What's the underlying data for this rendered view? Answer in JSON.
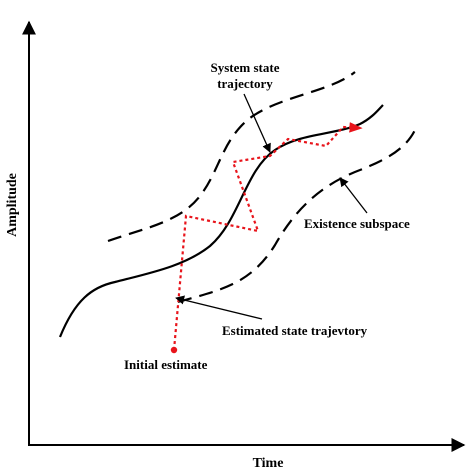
{
  "axes": {
    "x_label": "Time",
    "y_label": "Amplitude"
  },
  "annotations": {
    "system_state_line1": "System state",
    "system_state_line2": "trajectory",
    "existence_subspace": "Existence subspace",
    "estimated_trajectory": "Estimated state trajevtory",
    "initial_estimate": "Initial estimate"
  },
  "colors": {
    "line": "#000000",
    "estimate": "#e8141b"
  }
}
